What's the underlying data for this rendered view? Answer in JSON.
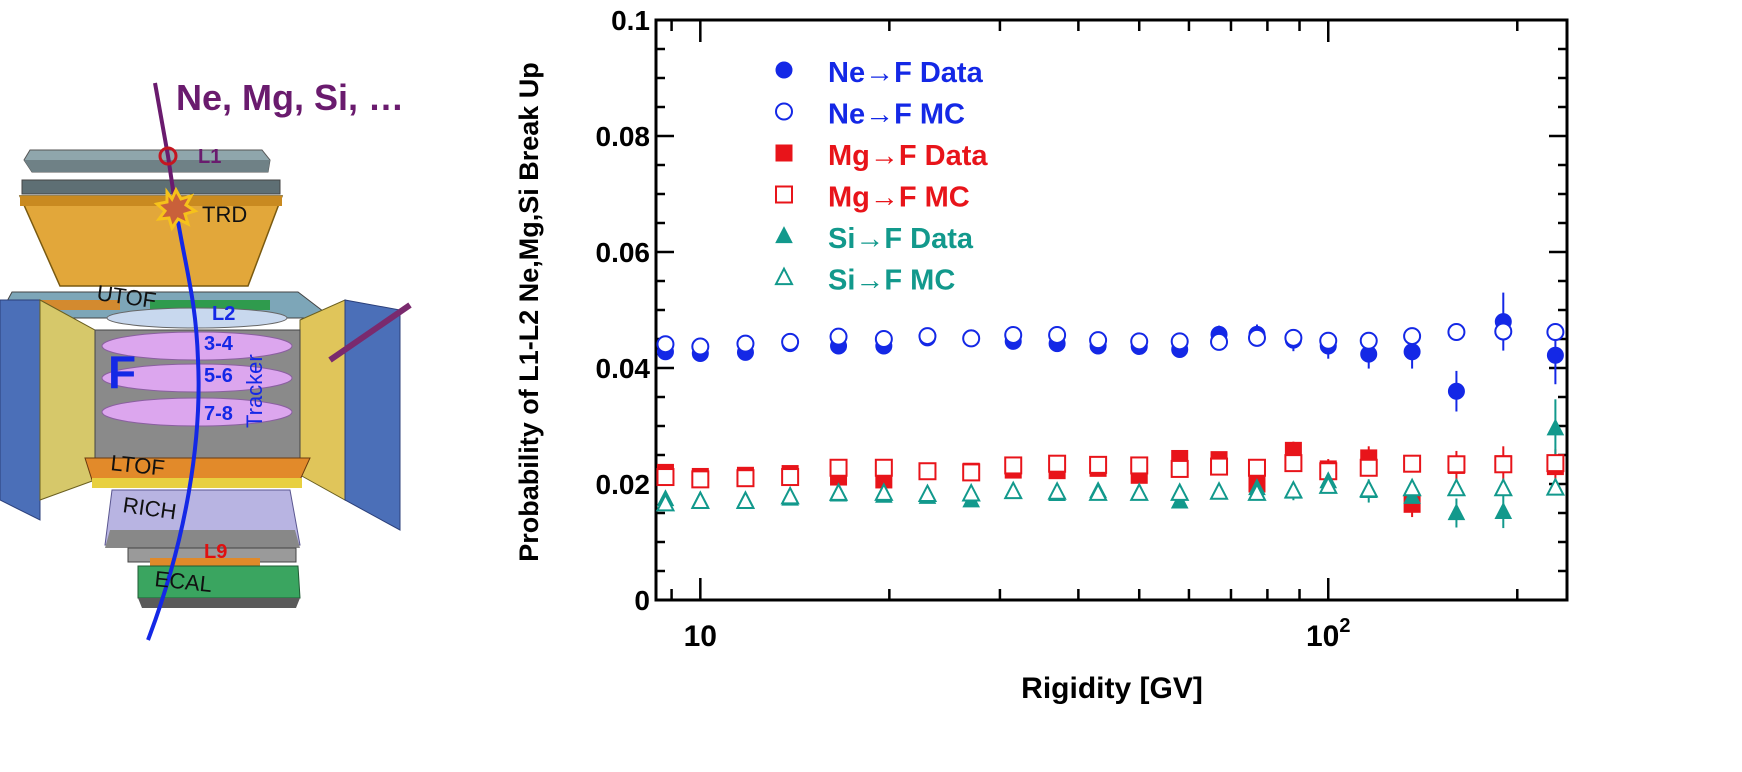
{
  "detector": {
    "incoming_label": "Ne, Mg, Si, …",
    "fragment_label": "F",
    "tracker_label": "Tracker",
    "layers": {
      "l1": "L1",
      "l2": "L2",
      "l34": "3-4",
      "l56": "5-6",
      "l78": "7-8",
      "l9": "L9"
    },
    "subdetectors": {
      "trd": "TRD",
      "utof": "UTOF",
      "ltof": "LTOF",
      "rich": "RICH",
      "ecal": "ECAL"
    },
    "colors": {
      "track_in": "#6a1b6e",
      "track_out": "#1428e6",
      "layer_blue": "#1428e6",
      "layer_red": "#e01010"
    }
  },
  "chart_data": {
    "type": "scatter",
    "title": "",
    "xlabel": "Rigidity [GV]",
    "ylabel": "Probability of L1-L2 Ne,Mg,Si Break Up",
    "xscale": "log",
    "xlim": [
      8.5,
      240
    ],
    "ylim": [
      0,
      0.1
    ],
    "xticks": [
      {
        "value": 10,
        "label": "10"
      },
      {
        "value": 100,
        "label": "10",
        "sup": "2"
      }
    ],
    "yticks": [
      {
        "value": 0,
        "label": "0"
      },
      {
        "value": 0.02,
        "label": "0.02"
      },
      {
        "value": 0.04,
        "label": "0.04"
      },
      {
        "value": 0.06,
        "label": "0.06"
      },
      {
        "value": 0.08,
        "label": "0.08"
      },
      {
        "value": 0.1,
        "label": "0.1"
      }
    ],
    "grid": false,
    "legend_position": "top-left",
    "x": [
      8.8,
      10.0,
      11.8,
      13.9,
      16.6,
      19.6,
      23.0,
      27.0,
      31.5,
      37.0,
      43.0,
      50.0,
      58.0,
      67.0,
      77.0,
      88.0,
      100.0,
      116.0,
      136.0,
      160.0,
      190.0,
      230.0
    ],
    "series": [
      {
        "name": "Ne→F  Data",
        "marker": "filled-circle",
        "color": "#1428e6",
        "values": [
          0.0428,
          0.0425,
          0.0427,
          0.0442,
          0.0438,
          0.0438,
          0.0452,
          0.0452,
          0.0446,
          0.0442,
          0.0438,
          0.0437,
          0.0432,
          0.0458,
          0.0458,
          0.0448,
          0.0438,
          0.0424,
          0.0428,
          0.036,
          0.048,
          0.0422
        ],
        "errors": [
          0.0006,
          0.0005,
          0.0005,
          0.0005,
          0.0005,
          0.0006,
          0.0006,
          0.0007,
          0.0008,
          0.0009,
          0.001,
          0.0011,
          0.0013,
          0.0015,
          0.0017,
          0.0019,
          0.0022,
          0.0025,
          0.0029,
          0.0035,
          0.005,
          0.005
        ]
      },
      {
        "name": "Ne→F  MC",
        "marker": "open-circle",
        "color": "#1428e6",
        "values": [
          0.0441,
          0.0437,
          0.0442,
          0.0445,
          0.0454,
          0.045,
          0.0455,
          0.0451,
          0.0457,
          0.0457,
          0.0448,
          0.0446,
          0.0446,
          0.0445,
          0.0452,
          0.0452,
          0.0447,
          0.0447,
          0.0455,
          0.0462,
          0.0463,
          0.0462
        ],
        "errors": [
          0,
          0,
          0,
          0,
          0,
          0,
          0,
          0,
          0,
          0,
          0,
          0,
          0,
          0,
          0,
          0.0008,
          0.0008,
          0.0008,
          0.0008,
          0,
          0.001,
          0.001
        ]
      },
      {
        "name": "Mg→F  Data",
        "marker": "filled-square",
        "color": "#e8141a",
        "values": [
          0.022,
          0.0213,
          0.0215,
          0.0218,
          0.0212,
          0.0207,
          0.0222,
          0.0222,
          0.0224,
          0.0223,
          0.0227,
          0.0215,
          0.0244,
          0.0242,
          0.02,
          0.0258,
          0.0226,
          0.0245,
          0.0165,
          0.0232,
          0.0235,
          0.023
        ],
        "errors": [
          0.0004,
          0.0004,
          0.0004,
          0.0004,
          0.0005,
          0.0005,
          0.0005,
          0.0006,
          0.0006,
          0.0007,
          0.0008,
          0.0009,
          0.001,
          0.0012,
          0.0013,
          0.0015,
          0.0017,
          0.002,
          0.0022,
          0.0025,
          0.003,
          0.003
        ]
      },
      {
        "name": "Mg→F  MC",
        "marker": "open-square",
        "color": "#e8141a",
        "values": [
          0.0212,
          0.0208,
          0.021,
          0.0212,
          0.0228,
          0.0228,
          0.0222,
          0.022,
          0.0232,
          0.0235,
          0.0233,
          0.0232,
          0.0226,
          0.023,
          0.0228,
          0.0236,
          0.0222,
          0.0228,
          0.0235,
          0.0234,
          0.0234,
          0.0236
        ],
        "errors": [
          0,
          0,
          0,
          0,
          0,
          0,
          0,
          0,
          0,
          0,
          0,
          0,
          0,
          0,
          0,
          0,
          0,
          0,
          0,
          0,
          0,
          0
        ]
      },
      {
        "name": "Si→F  Data",
        "marker": "filled-triangle",
        "color": "#12998c",
        "values": [
          0.0174,
          0.0172,
          0.0172,
          0.0175,
          0.0182,
          0.018,
          0.0178,
          0.0172,
          0.0187,
          0.0183,
          0.0188,
          0.0184,
          0.017,
          0.0187,
          0.0193,
          0.0187,
          0.0205,
          0.0188,
          0.0178,
          0.015,
          0.0152,
          0.0296
        ],
        "errors": [
          0.0004,
          0.0004,
          0.0004,
          0.0004,
          0.0005,
          0.0005,
          0.0005,
          0.0006,
          0.0006,
          0.0007,
          0.0008,
          0.0009,
          0.001,
          0.0012,
          0.0013,
          0.0015,
          0.0017,
          0.002,
          0.0022,
          0.0025,
          0.0028,
          0.005
        ]
      },
      {
        "name": "Si→F  MC",
        "marker": "open-triangle",
        "color": "#12998c",
        "values": [
          0.0166,
          0.017,
          0.017,
          0.0178,
          0.0184,
          0.0184,
          0.0182,
          0.0183,
          0.0187,
          0.0186,
          0.0184,
          0.0184,
          0.0184,
          0.0186,
          0.0184,
          0.0188,
          0.0196,
          0.019,
          0.0192,
          0.0192,
          0.0192,
          0.0193
        ],
        "errors": [
          0,
          0,
          0,
          0,
          0,
          0,
          0,
          0,
          0,
          0,
          0,
          0,
          0,
          0,
          0,
          0,
          0,
          0,
          0,
          0,
          0,
          0
        ]
      }
    ]
  }
}
